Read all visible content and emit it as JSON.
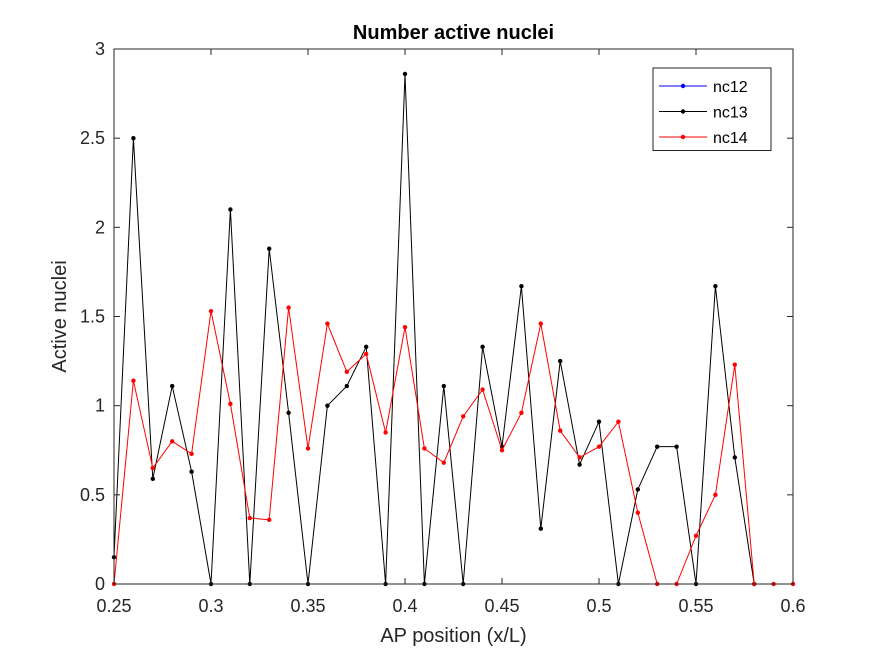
{
  "chart_data": {
    "type": "line",
    "title": "Number active nuclei",
    "xlabel": "AP position (x/L)",
    "ylabel": "Active nuclei",
    "xlim": [
      0.25,
      0.6
    ],
    "ylim": [
      0,
      3
    ],
    "xticks": [
      "0.25",
      "0.3",
      "0.35",
      "0.4",
      "0.45",
      "0.5",
      "0.55",
      "0.6"
    ],
    "yticks": [
      "0",
      "0.5",
      "1",
      "1.5",
      "2",
      "2.5",
      "3"
    ],
    "grid": false,
    "legend_position": "top-right",
    "series": [
      {
        "name": "nc12",
        "color": "#0000ff",
        "points": []
      },
      {
        "name": "nc13",
        "color": "#000000",
        "points": [
          [
            0.25,
            0.15
          ],
          [
            0.26,
            2.5
          ],
          [
            0.27,
            0.59
          ],
          [
            0.28,
            1.11
          ],
          [
            0.29,
            0.63
          ],
          [
            0.3,
            0.0
          ],
          [
            0.31,
            2.1
          ],
          [
            0.32,
            0.0
          ],
          [
            0.33,
            1.88
          ],
          [
            0.34,
            0.96
          ],
          [
            0.35,
            0.0
          ],
          [
            0.36,
            1.0
          ],
          [
            0.37,
            1.11
          ],
          [
            0.38,
            1.33
          ],
          [
            0.39,
            0.0
          ],
          [
            0.4,
            2.86
          ],
          [
            0.41,
            0.0
          ],
          [
            0.42,
            1.11
          ],
          [
            0.43,
            0.0
          ],
          [
            0.44,
            1.33
          ],
          [
            0.45,
            0.77
          ],
          [
            0.46,
            1.67
          ],
          [
            0.47,
            0.31
          ],
          [
            0.48,
            1.25
          ],
          [
            0.49,
            0.67
          ],
          [
            0.5,
            0.91
          ],
          [
            0.51,
            0.0
          ],
          [
            0.52,
            0.53
          ],
          [
            0.53,
            0.77
          ],
          [
            0.54,
            0.77
          ],
          [
            0.55,
            0.0
          ],
          [
            0.56,
            1.67
          ],
          [
            0.57,
            0.71
          ],
          [
            0.58,
            0.0
          ]
        ]
      },
      {
        "name": "nc14",
        "color": "#ff0000",
        "points": [
          [
            0.25,
            0.0
          ],
          [
            0.26,
            1.14
          ],
          [
            0.27,
            0.65
          ],
          [
            0.28,
            0.8
          ],
          [
            0.29,
            0.73
          ],
          [
            0.3,
            1.53
          ],
          [
            0.31,
            1.01
          ],
          [
            0.32,
            0.37
          ],
          [
            0.33,
            0.36
          ],
          [
            0.34,
            1.55
          ],
          [
            0.35,
            0.76
          ],
          [
            0.36,
            1.46
          ],
          [
            0.37,
            1.19
          ],
          [
            0.38,
            1.29
          ],
          [
            0.39,
            0.85
          ],
          [
            0.4,
            1.44
          ],
          [
            0.41,
            0.76
          ],
          [
            0.42,
            0.68
          ],
          [
            0.43,
            0.94
          ],
          [
            0.44,
            1.09
          ],
          [
            0.45,
            0.75
          ],
          [
            0.46,
            0.96
          ],
          [
            0.47,
            1.46
          ],
          [
            0.48,
            0.86
          ],
          [
            0.49,
            0.71
          ],
          [
            0.5,
            0.77
          ],
          [
            0.51,
            0.91
          ],
          [
            0.52,
            0.4
          ],
          [
            0.53,
            0.0
          ],
          [
            0.54,
            0.0
          ],
          [
            0.55,
            0.27
          ],
          [
            0.56,
            0.5
          ],
          [
            0.57,
            1.23
          ],
          [
            0.58,
            0.0
          ],
          [
            0.59,
            0.0
          ],
          [
            0.6,
            0.0
          ]
        ]
      }
    ]
  }
}
